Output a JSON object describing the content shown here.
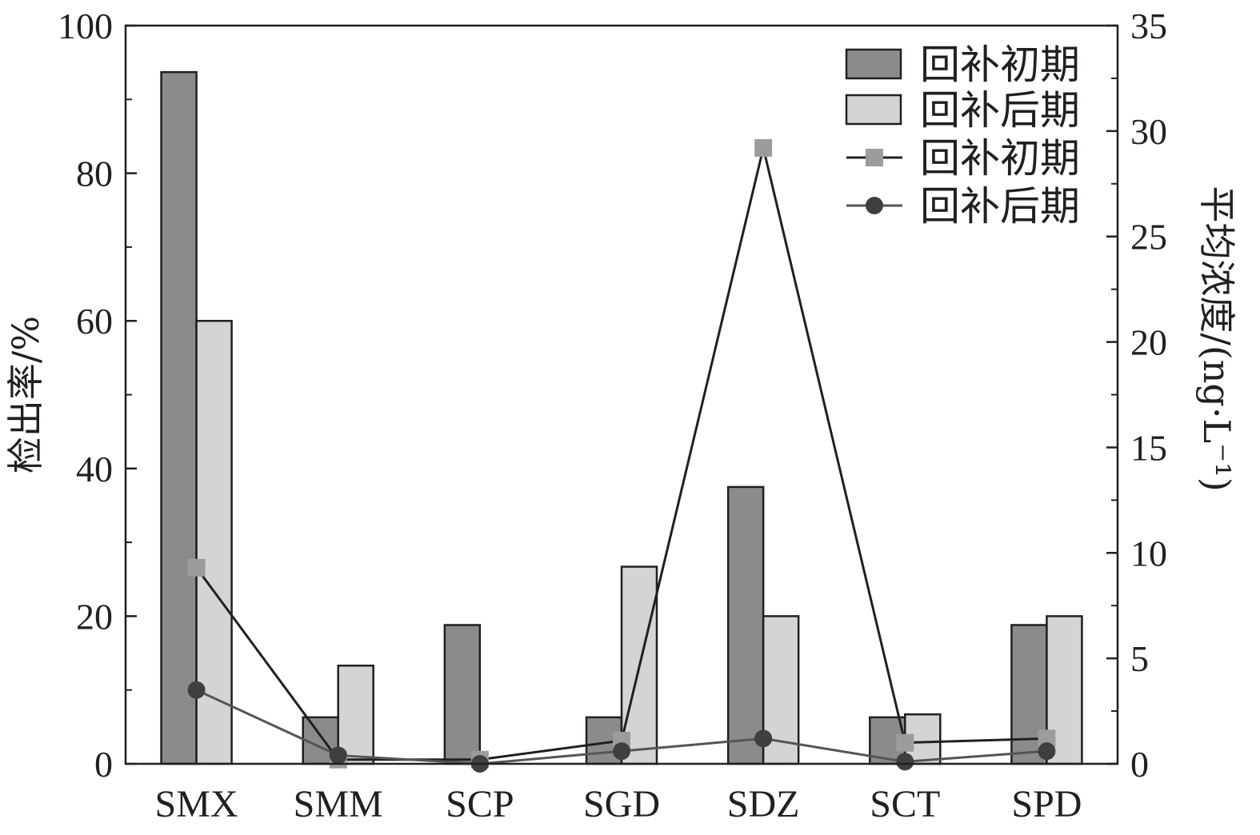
{
  "chart_data": {
    "type": "bar",
    "categories": [
      "SMX",
      "SMM",
      "SCP",
      "SGD",
      "SDZ",
      "SCT",
      "SPD"
    ],
    "bar_series": [
      {
        "name": "回补初期",
        "values": [
          93.7,
          6.3,
          18.8,
          6.3,
          37.5,
          6.3,
          18.8
        ],
        "color": "#8c8a8b"
      },
      {
        "name": "回补后期",
        "values": [
          60.0,
          13.3,
          0,
          26.7,
          20.0,
          6.7,
          20.0
        ],
        "color": "#d4d4d4"
      }
    ],
    "line_series": [
      {
        "name": "回补初期",
        "marker": "square",
        "values": [
          9.3,
          0.2,
          0.2,
          1.1,
          29.2,
          1.0,
          1.2
        ],
        "marker_color": "#9c9c9c",
        "line_color": "#231f20"
      },
      {
        "name": "回补后期",
        "marker": "circle",
        "values": [
          3.5,
          0.4,
          0.0,
          0.6,
          1.2,
          0.1,
          0.6
        ],
        "marker_color": "#3f3f3f",
        "line_color": "#555555"
      }
    ],
    "y_left": {
      "label": "检出率/%",
      "lim": [
        0,
        100
      ],
      "ticks": [
        "0",
        "20",
        "40",
        "60",
        "80",
        "100"
      ]
    },
    "y_right": {
      "label": "平均浓度/(ng·L⁻¹)",
      "lim": [
        0,
        35
      ],
      "ticks": [
        "0",
        "5",
        "10",
        "15",
        "20",
        "25",
        "30",
        "35"
      ]
    },
    "legend": {
      "position": "top-right"
    },
    "grid": false
  }
}
